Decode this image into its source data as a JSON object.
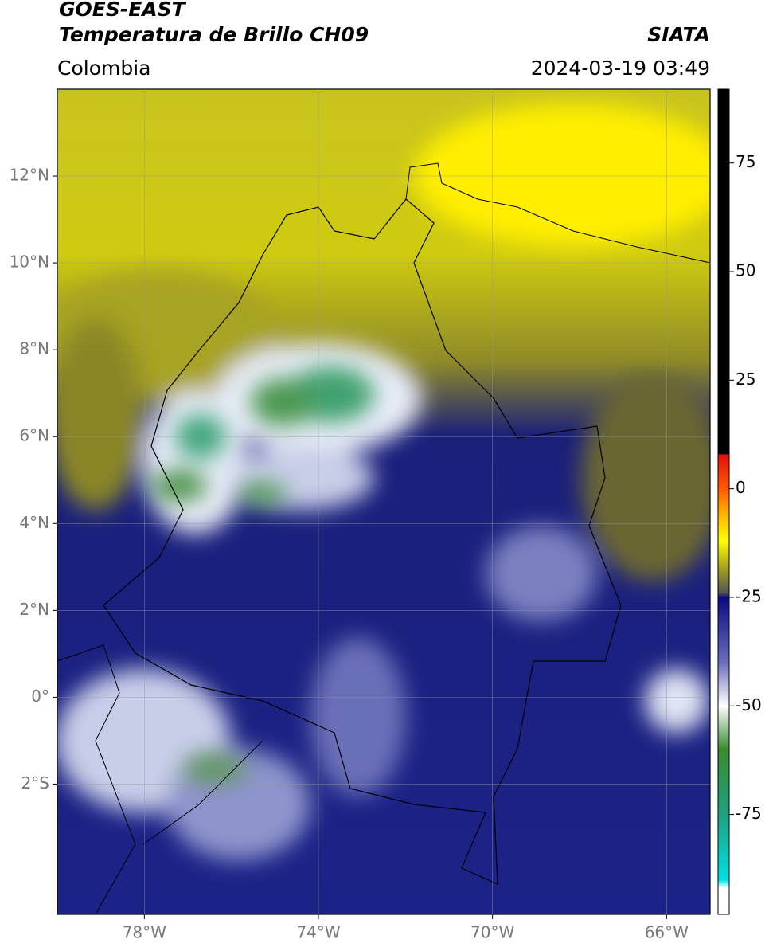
{
  "header": {
    "satellite": "GOES-EAST",
    "product": "Temperatura de Brillo CH09",
    "source": "SIATA",
    "region": "Colombia",
    "datetime": "2024-03-19 03:49"
  },
  "map": {
    "xlim": [
      -80,
      -65
    ],
    "ylim": [
      -5,
      14
    ],
    "xticks": [
      {
        "value": -78,
        "label": "78°W"
      },
      {
        "value": -74,
        "label": "74°W"
      },
      {
        "value": -70,
        "label": "70°W"
      },
      {
        "value": -66,
        "label": "66°W"
      }
    ],
    "yticks": [
      {
        "value": 12,
        "label": "12°N"
      },
      {
        "value": 10,
        "label": "10°N"
      },
      {
        "value": 8,
        "label": "8°N"
      },
      {
        "value": 6,
        "label": "6°N"
      },
      {
        "value": 4,
        "label": "4°N"
      },
      {
        "value": 2,
        "label": "2°N"
      },
      {
        "value": 0,
        "label": "0°"
      },
      {
        "value": -2,
        "label": "2°S"
      }
    ],
    "grid": true
  },
  "colorbar": {
    "clim": [
      -98,
      92
    ],
    "ticks": [
      75,
      50,
      25,
      0,
      -25,
      -50,
      -75
    ]
  }
}
